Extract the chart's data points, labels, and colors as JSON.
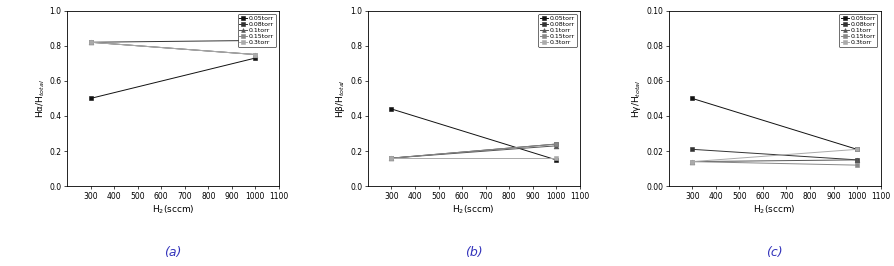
{
  "x_values": [
    300,
    1000
  ],
  "pressures": [
    "0.05torr",
    "0.08torr",
    "0.1torr",
    "0.15torr",
    "0.3torr"
  ],
  "panel_a": {
    "ylabel": "Hα/H$_{total}$",
    "xlabel": "H$_2$(sccm)",
    "ylim": [
      0.0,
      1.0
    ],
    "yticks": [
      0.0,
      0.2,
      0.4,
      0.6,
      0.8,
      1.0
    ],
    "xlim": [
      200,
      1100
    ],
    "xticks": [
      300,
      400,
      500,
      600,
      700,
      800,
      900,
      1000,
      1100
    ],
    "data": [
      [
        0.5,
        0.73
      ],
      [
        0.82,
        0.83
      ],
      [
        0.82,
        0.75
      ],
      [
        0.82,
        0.75
      ],
      [
        0.82,
        0.75
      ]
    ],
    "label": "(a)"
  },
  "panel_b": {
    "ylabel": "Hβ/H$_{total}$",
    "xlabel": "H$_2$(sccm)",
    "ylim": [
      0.0,
      1.0
    ],
    "yticks": [
      0.0,
      0.2,
      0.4,
      0.6,
      0.8,
      1.0
    ],
    "xlim": [
      200,
      1100
    ],
    "xticks": [
      300,
      400,
      500,
      600,
      700,
      800,
      900,
      1000,
      1100
    ],
    "data": [
      [
        0.44,
        0.15
      ],
      [
        0.16,
        0.24
      ],
      [
        0.16,
        0.23
      ],
      [
        0.16,
        0.24
      ],
      [
        0.16,
        0.16
      ]
    ],
    "label": "(b)"
  },
  "panel_c": {
    "ylabel": "Hγ/H$_{total}$",
    "xlabel": "H$_2$(sccm)",
    "ylim": [
      0.0,
      0.1
    ],
    "yticks": [
      0.0,
      0.02,
      0.04,
      0.06,
      0.08,
      0.1
    ],
    "xlim": [
      200,
      1100
    ],
    "xticks": [
      300,
      400,
      500,
      600,
      700,
      800,
      900,
      1000,
      1100
    ],
    "data": [
      [
        0.05,
        0.021
      ],
      [
        0.021,
        0.015
      ],
      [
        0.014,
        0.015
      ],
      [
        0.014,
        0.012
      ],
      [
        0.014,
        0.021
      ]
    ],
    "label": "(c)"
  },
  "marker_styles": [
    "s",
    "s",
    "^",
    "s",
    "s"
  ],
  "line_colors": [
    "#111111",
    "#333333",
    "#555555",
    "#888888",
    "#aaaaaa"
  ],
  "label_color": "#3333bb",
  "fig_width": 8.94,
  "fig_height": 2.66,
  "dpi": 100
}
